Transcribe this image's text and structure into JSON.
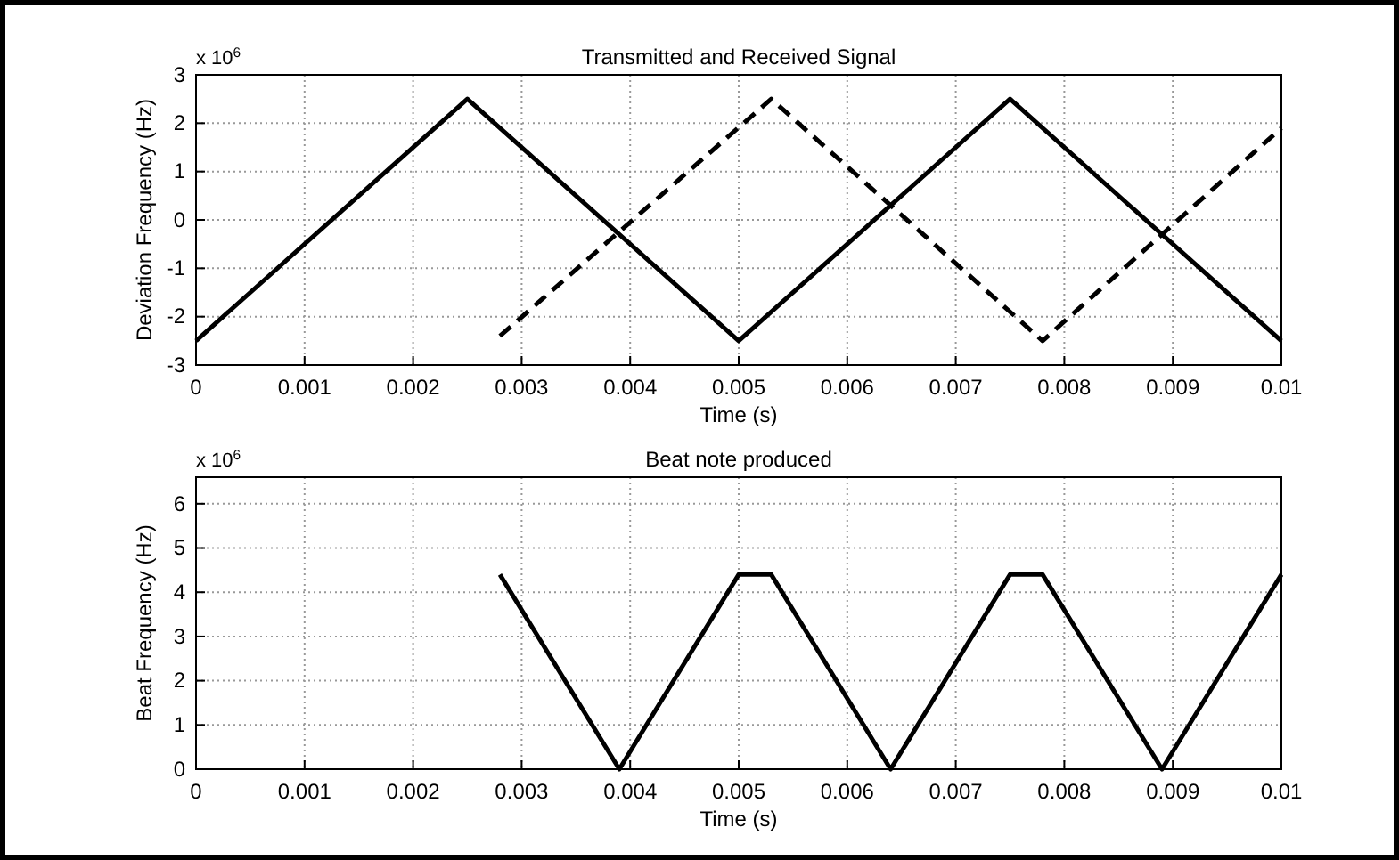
{
  "chart_data": [
    {
      "type": "line",
      "title": "Transmitted and Received Signal",
      "xlabel": "Time (s)",
      "ylabel": "Deviation Frequency (Hz)",
      "annotations": [
        "x 10$^{6}$"
      ],
      "xlim": [
        0,
        0.01
      ],
      "ylim": [
        -3,
        3
      ],
      "xticks": [
        0,
        0.001,
        0.002,
        0.003,
        0.004,
        0.005,
        0.006,
        0.007,
        0.008,
        0.009,
        0.01
      ],
      "yticks": [
        -3,
        -2,
        -1,
        0,
        1,
        2,
        3
      ],
      "grid": true,
      "line_style": "solid",
      "series": [
        {
          "color": "#000000",
          "x": [
            0,
            0.0025,
            0.005,
            0.0075,
            0.01
          ],
          "values": [
            -2.5,
            2.5,
            -2.5,
            2.5,
            -2.5
          ]
        },
        {
          "color": "#000000",
          "line_style": "dashed",
          "x": [
            0.0028,
            0.0053,
            0.0078,
            0.01
          ],
          "values": [
            -2.4,
            2.5,
            -2.5,
            1.9
          ]
        }
      ]
    },
    {
      "type": "line",
      "title": "Beat note produced",
      "xlabel": "Time (s)",
      "ylabel": "Beat Frequency (Hz)",
      "annotations": [
        "x 10$^{6}$"
      ],
      "xlim": [
        0,
        0.01
      ],
      "ylim": [
        0,
        6.6
      ],
      "xticks": [
        0,
        0.001,
        0.002,
        0.003,
        0.004,
        0.005,
        0.006,
        0.007,
        0.008,
        0.009,
        0.01
      ],
      "yticks": [
        0,
        1,
        2,
        3,
        4,
        5,
        6
      ],
      "grid": true,
      "line_style": "solid",
      "series": [
        {
          "color": "#000000",
          "x": [
            0.0028,
            0.0039,
            0.005,
            0.0053,
            0.0064,
            0.0075,
            0.0078,
            0.0089,
            0.01
          ],
          "values": [
            4.4,
            0,
            4.4,
            4.4,
            0,
            4.4,
            4.4,
            0,
            4.4
          ]
        }
      ]
    }
  ]
}
